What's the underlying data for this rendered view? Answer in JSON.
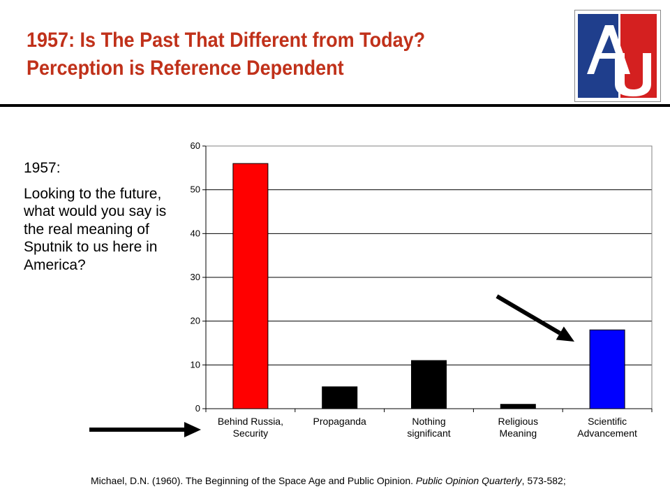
{
  "title": {
    "line1": "1957: Is The Past That Different from Today?",
    "line2": "Perception is Reference Dependent"
  },
  "logo": {
    "text": "AU",
    "colors": {
      "blue": "#1f3e8c",
      "red": "#d42020"
    }
  },
  "question": {
    "year": "1957:",
    "text": "Looking to the future, what would you say is the real meaning of Sputnik to us here in America?"
  },
  "chart_data": {
    "type": "bar",
    "categories": [
      [
        "Behind Russia,",
        "Security"
      ],
      [
        "Propaganda"
      ],
      [
        "Nothing",
        "significant"
      ],
      [
        "Religious",
        "Meaning"
      ],
      [
        "Scientific",
        "Advancement"
      ]
    ],
    "values": [
      56,
      5,
      11,
      1,
      18
    ],
    "colors": [
      "#ff0000",
      "#000000",
      "#000000",
      "#000000",
      "#0000ff"
    ],
    "ylim": [
      0,
      60
    ],
    "yticks": [
      0,
      10,
      20,
      30,
      40,
      50,
      60
    ],
    "grid": true,
    "legend": "none",
    "annotations": [
      {
        "type": "arrow",
        "points_to": "Scientific Advancement"
      },
      {
        "type": "arrow",
        "points_to": "category axis"
      }
    ]
  },
  "citation": {
    "prefix": "Michael, D.N. (1960). The Beginning of the Space Age and Public Opinion. ",
    "journal": "Public Opinion Quarterly",
    "suffix": ", 573-582;"
  }
}
